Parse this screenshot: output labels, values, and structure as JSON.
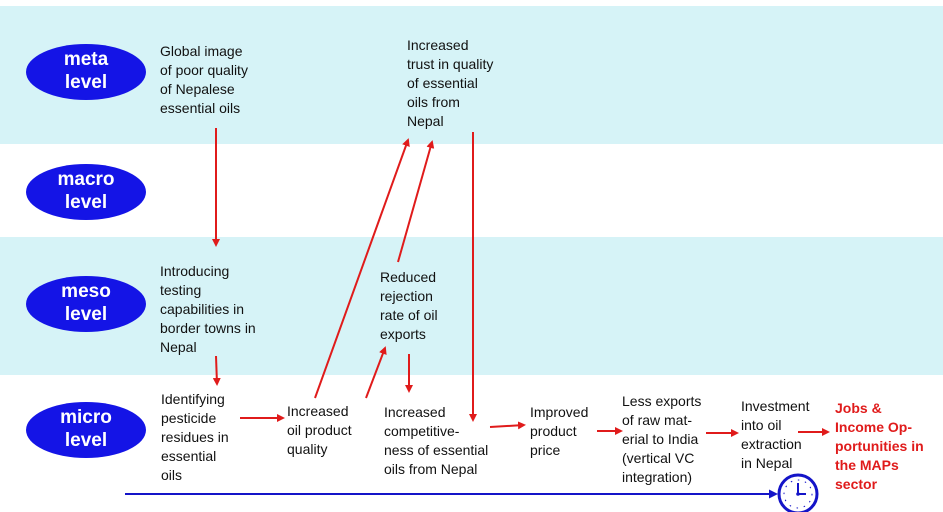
{
  "levels": {
    "meta": "meta\nlevel",
    "macro": "macro\nlevel",
    "meso": "meso\nlevel",
    "micro": "micro\nlevel"
  },
  "nodes": {
    "global_image": "Global image\nof poor quality\nof Nepalese\nessential oils",
    "increased_trust": "Increased\ntrust in quality\nof essential\noils from\nNepal",
    "introducing_testing": "Introducing\ntesting\ncapabilities in\nborder towns in\nNepal",
    "reduced_rejection": "Reduced\nrejection\nrate of oil\nexports",
    "identifying_pesticide": "Identifying\npesticide\nresidues in\nessential\noils",
    "increased_quality": "Increased\noil product\nquality",
    "increased_competitiveness": "Increased\ncompetitive-\nness of essential\noils from Nepal",
    "improved_price": "Improved\nproduct\nprice",
    "less_exports": "Less exports\nof raw mat-\nerial to India\n(vertical VC\nintegration)",
    "investment": "Investment\ninto oil\nextraction\nin Nepal",
    "jobs": "Jobs &\nIncome Op-\nportunities in\nthe MAPs\nsector"
  },
  "colors": {
    "band": "#d6f3f7",
    "oval": "#1414e6",
    "arrow": "#e01b1b",
    "timeline": "#1414c8",
    "outcome_text": "#e01b1b"
  },
  "icons": {
    "timeline_end": "clock-icon"
  }
}
